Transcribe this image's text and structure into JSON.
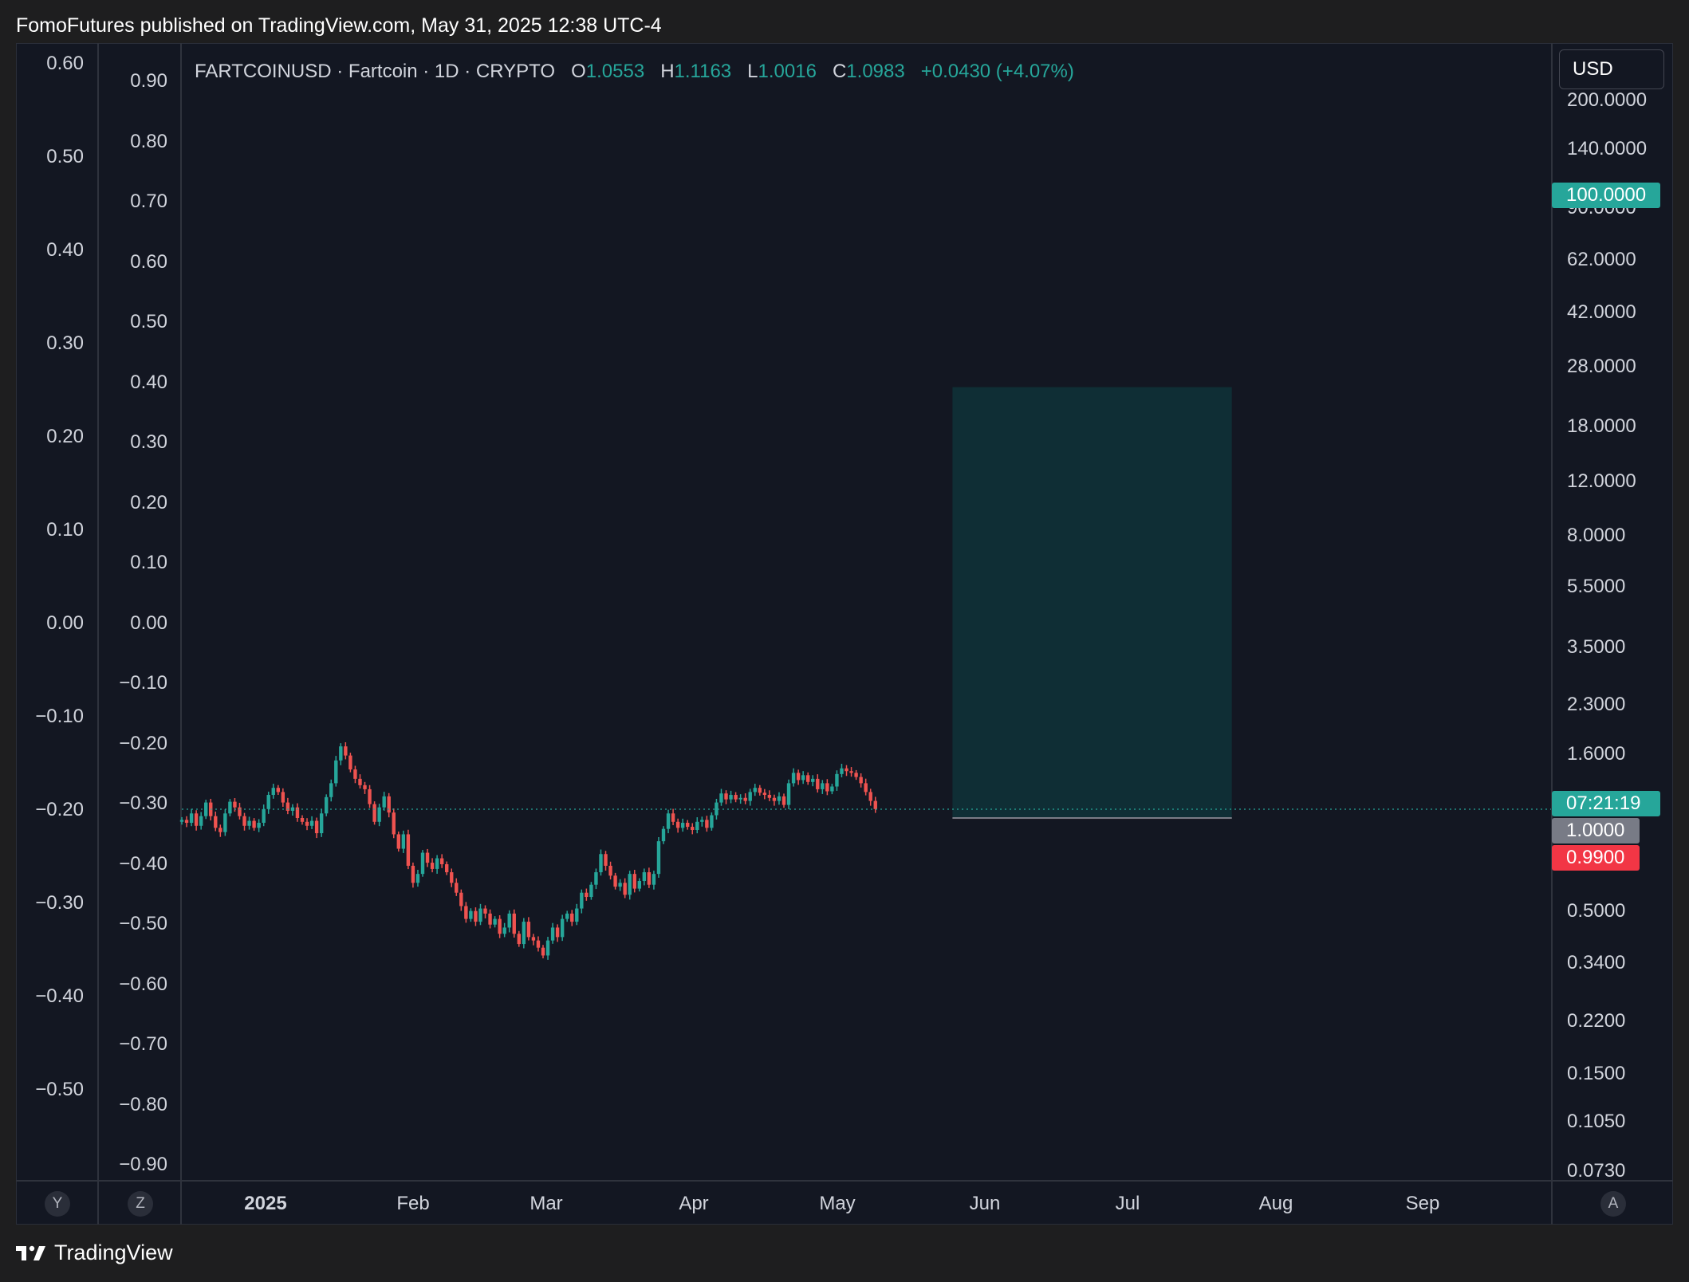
{
  "header": {
    "publisher_line": "FomoFutures published on TradingView.com, May 31, 2025 12:38 UTC-4"
  },
  "legend": {
    "symbol": "FARTCOINUSD · Fartcoin · 1D · CRYPTO",
    "o_label": "O",
    "o_value": "1.0553",
    "h_label": "H",
    "h_value": "1.1163",
    "l_label": "L",
    "l_value": "1.0016",
    "c_label": "C",
    "c_value": "1.0983",
    "change": "+0.0430 (+4.07%)"
  },
  "currency_button": "USD",
  "price_tags": {
    "target": "100.0000",
    "countdown": "07:21:19",
    "entry": "1.0000",
    "stop": "0.9900"
  },
  "scale_buttons": {
    "y": "Y",
    "z": "Z",
    "a": "A"
  },
  "footer": {
    "brand": "TradingView"
  },
  "colors": {
    "up": "#26a69a",
    "down": "#ef5350",
    "target_zone": "#0f2e35",
    "background": "#131722"
  },
  "chart_data": {
    "type": "candlestick",
    "title": "FARTCOINUSD · Fartcoin · 1D · CRYPTO",
    "y_scale": "log",
    "right_axis_ticks": [
      "200.0000",
      "140.0000",
      "90.0000",
      "62.0000",
      "42.0000",
      "28.0000",
      "18.0000",
      "12.0000",
      "8.0000",
      "5.5000",
      "3.5000",
      "2.3000",
      "1.6000",
      "0.5000",
      "0.3400",
      "0.2200",
      "0.1500",
      "0.1050",
      "0.0730"
    ],
    "left_axis_1_ticks": [
      "0.60",
      "0.50",
      "0.40",
      "0.30",
      "0.20",
      "0.10",
      "0.00",
      "−0.10",
      "−0.20",
      "−0.30",
      "−0.40",
      "−0.50"
    ],
    "left_axis_2_ticks": [
      "0.90",
      "0.80",
      "0.70",
      "0.60",
      "0.50",
      "0.40",
      "0.30",
      "0.20",
      "0.10",
      "0.00",
      "−0.10",
      "−0.20",
      "−0.30",
      "−0.40",
      "−0.50",
      "−0.60",
      "−0.70",
      "−0.80",
      "−0.90"
    ],
    "x_ticks": [
      "2025",
      "Feb",
      "Mar",
      "Apr",
      "May",
      "Jun",
      "Jul",
      "Aug",
      "Sep"
    ],
    "x_range": [
      "2024-12-22",
      "2025-09-30"
    ],
    "last_close": 1.0983,
    "long_position": {
      "entry": 1.0,
      "stop": 0.99,
      "target": 100.0,
      "start": "2025-05-31",
      "end": "2025-07-28"
    },
    "series": [
      {
        "type": "candlestick",
        "start": "2024-12-22",
        "interval": "1D",
        "closes": [
          0.98,
          0.95,
          1.05,
          0.92,
          1.02,
          1.18,
          1.02,
          0.9,
          0.86,
          1.05,
          1.19,
          1.12,
          1.02,
          0.92,
          0.97,
          0.9,
          0.95,
          1.1,
          1.28,
          1.38,
          1.32,
          1.18,
          1.08,
          1.12,
          1.0,
          0.96,
          0.92,
          0.97,
          0.85,
          1.05,
          1.25,
          1.45,
          1.85,
          2.15,
          1.95,
          1.68,
          1.52,
          1.42,
          1.36,
          1.16,
          0.96,
          1.12,
          1.26,
          1.06,
          0.84,
          0.72,
          0.84,
          0.6,
          0.5,
          0.55,
          0.69,
          0.62,
          0.58,
          0.65,
          0.61,
          0.56,
          0.5,
          0.45,
          0.39,
          0.34,
          0.37,
          0.33,
          0.38,
          0.36,
          0.32,
          0.34,
          0.29,
          0.31,
          0.36,
          0.29,
          0.26,
          0.33,
          0.28,
          0.27,
          0.25,
          0.23,
          0.27,
          0.31,
          0.28,
          0.34,
          0.36,
          0.33,
          0.38,
          0.45,
          0.43,
          0.49,
          0.56,
          0.68,
          0.6,
          0.54,
          0.48,
          0.5,
          0.44,
          0.55,
          0.47,
          0.51,
          0.56,
          0.49,
          0.55,
          0.78,
          0.89,
          1.05,
          0.96,
          0.9,
          0.95,
          0.91,
          0.88,
          0.96,
          0.98,
          0.9,
          1.03,
          1.18,
          1.3,
          1.22,
          1.28,
          1.22,
          1.24,
          1.2,
          1.32,
          1.38,
          1.31,
          1.28,
          1.24,
          1.2,
          1.26,
          1.15,
          1.45,
          1.62,
          1.5,
          1.58,
          1.47,
          1.52,
          1.36,
          1.45,
          1.33,
          1.4,
          1.6,
          1.7,
          1.65,
          1.62,
          1.55,
          1.45,
          1.32,
          1.2,
          1.1
        ]
      }
    ]
  }
}
